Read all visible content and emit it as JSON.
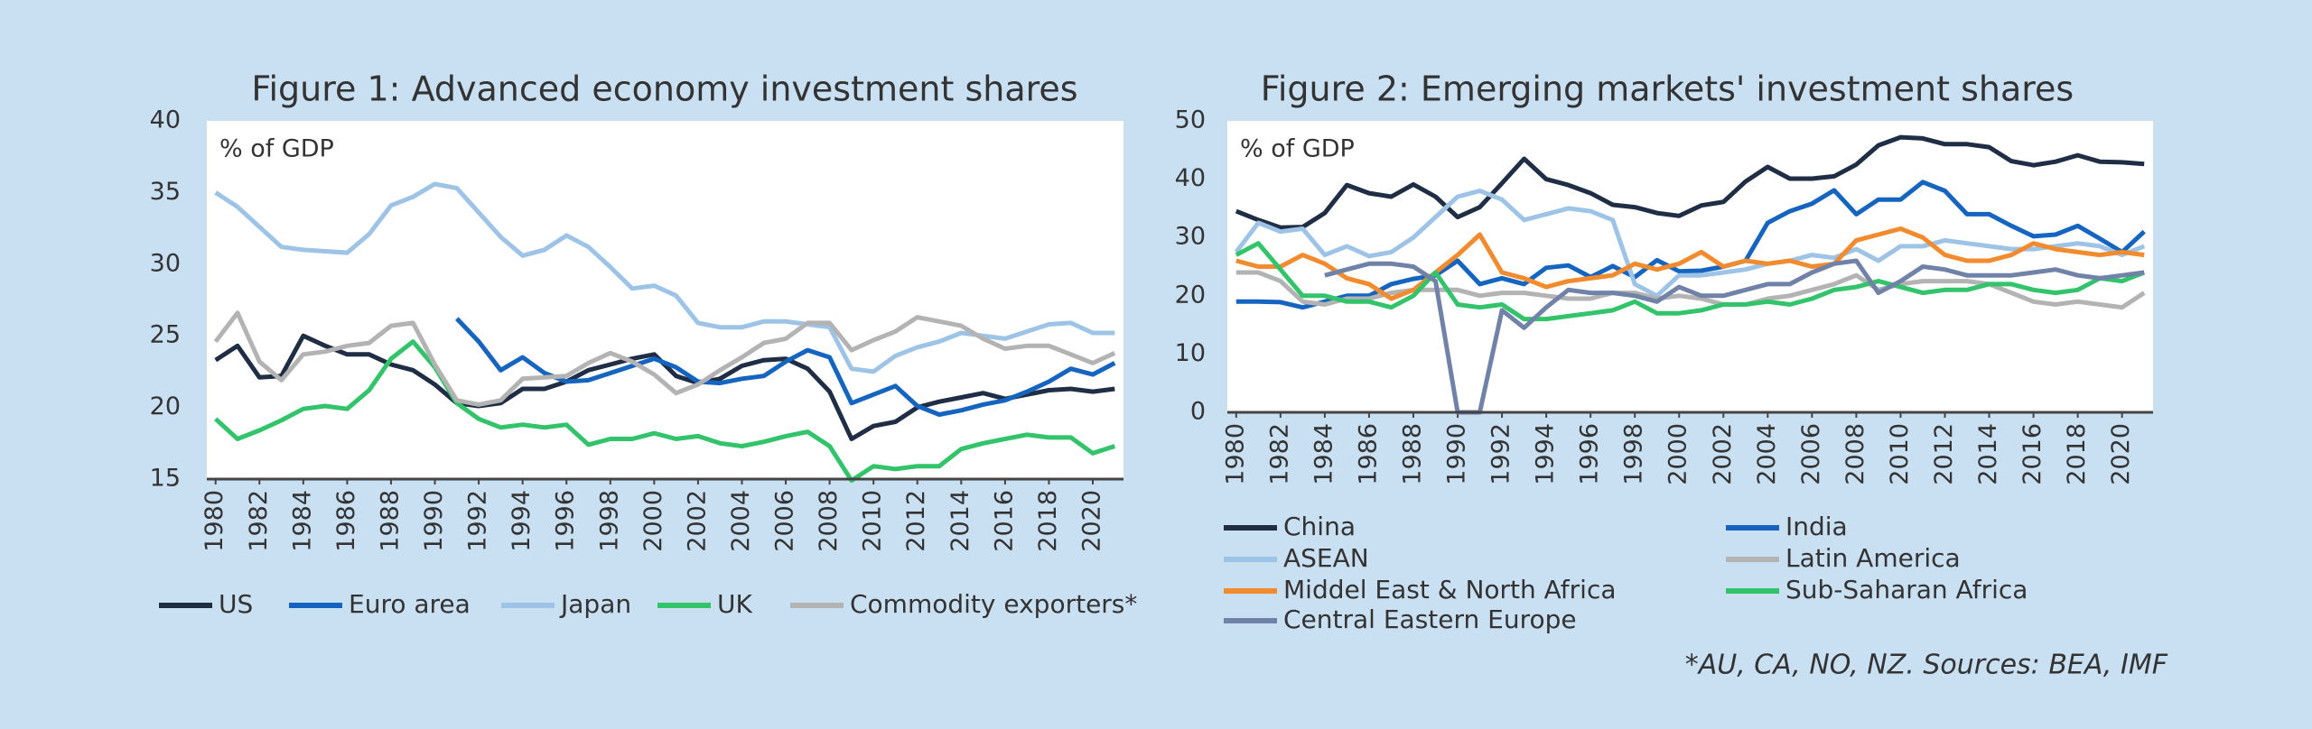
{
  "chart_data": [
    {
      "type": "line",
      "title": "Figure 1: Advanced economy investment shares",
      "annotation": "% of GDP",
      "x": [
        1980,
        1981,
        1982,
        1983,
        1984,
        1985,
        1986,
        1987,
        1988,
        1989,
        1990,
        1991,
        1992,
        1993,
        1994,
        1995,
        1996,
        1997,
        1998,
        1999,
        2000,
        2001,
        2002,
        2003,
        2004,
        2005,
        2006,
        2007,
        2008,
        2009,
        2010,
        2011,
        2012,
        2013,
        2014,
        2015,
        2016,
        2017,
        2018,
        2019,
        2020,
        2021
      ],
      "xlim": [
        1979.6,
        2021.4
      ],
      "xticks": [
        1980,
        1982,
        1984,
        1986,
        1988,
        1990,
        1992,
        1994,
        1996,
        1998,
        2000,
        2002,
        2004,
        2006,
        2008,
        2010,
        2012,
        2014,
        2016,
        2018,
        2020
      ],
      "ylim": [
        15,
        40
      ],
      "yticks": [
        15,
        20,
        25,
        30,
        35,
        40
      ],
      "grid": false,
      "legend": "bottom",
      "series": [
        {
          "name": "US",
          "color": "#1f2d45",
          "values": [
            23.3,
            24.3,
            22.1,
            22.2,
            25.0,
            24.3,
            23.7,
            23.7,
            23.0,
            22.6,
            21.6,
            20.3,
            20.1,
            20.3,
            21.3,
            21.3,
            21.8,
            22.6,
            23.0,
            23.4,
            23.7,
            22.2,
            21.7,
            22.0,
            22.9,
            23.3,
            23.4,
            22.7,
            21.1,
            17.8,
            18.7,
            19.0,
            20.0,
            20.4,
            20.7,
            21.0,
            20.6,
            20.9,
            21.2,
            21.3,
            21.1,
            21.3
          ]
        },
        {
          "name": "Euro area",
          "color": "#1565c0",
          "values": [
            null,
            null,
            null,
            null,
            null,
            null,
            null,
            null,
            null,
            null,
            null,
            26.2,
            24.6,
            22.6,
            23.5,
            22.4,
            21.8,
            21.9,
            22.4,
            22.9,
            23.4,
            22.8,
            21.8,
            21.7,
            22.0,
            22.2,
            23.2,
            24.0,
            23.5,
            20.3,
            20.9,
            21.5,
            20.1,
            19.5,
            19.8,
            20.2,
            20.5,
            21.1,
            21.8,
            22.7,
            22.3,
            23.1
          ]
        },
        {
          "name": "Japan",
          "color": "#9dc3e6",
          "values": [
            35.0,
            34.0,
            32.6,
            31.2,
            31.0,
            30.9,
            30.8,
            32.1,
            34.1,
            34.7,
            35.6,
            35.3,
            33.6,
            31.9,
            30.6,
            31.0,
            32.0,
            31.2,
            29.8,
            28.3,
            28.5,
            27.8,
            25.9,
            25.6,
            25.6,
            26.0,
            26.0,
            25.8,
            25.6,
            22.7,
            22.5,
            23.6,
            24.2,
            24.6,
            25.2,
            25.0,
            24.8,
            25.3,
            25.8,
            25.9,
            25.2,
            25.2
          ]
        },
        {
          "name": "UK",
          "color": "#33c36a",
          "values": [
            19.2,
            17.8,
            18.4,
            19.1,
            19.9,
            20.1,
            19.9,
            21.2,
            23.4,
            24.6,
            22.8,
            20.3,
            19.2,
            18.6,
            18.8,
            18.6,
            18.8,
            17.4,
            17.8,
            17.8,
            18.2,
            17.8,
            18.0,
            17.5,
            17.3,
            17.6,
            18.0,
            18.3,
            17.3,
            14.9,
            15.9,
            15.7,
            15.9,
            15.9,
            17.1,
            17.5,
            17.8,
            18.1,
            17.9,
            17.9,
            16.8,
            17.3
          ]
        },
        {
          "name": "Commodity exporters*",
          "color": "#b3b3b3",
          "values": [
            24.6,
            26.6,
            23.2,
            21.9,
            23.7,
            23.9,
            24.3,
            24.5,
            25.7,
            25.9,
            23.0,
            20.5,
            20.2,
            20.5,
            22.0,
            22.1,
            22.2,
            23.1,
            23.8,
            23.2,
            22.3,
            21.0,
            21.6,
            22.6,
            23.5,
            24.5,
            24.8,
            25.9,
            25.9,
            24.0,
            24.7,
            25.3,
            26.3,
            26.0,
            25.7,
            24.8,
            24.1,
            24.3,
            24.3,
            23.7,
            23.1,
            23.8
          ]
        }
      ]
    },
    {
      "type": "line",
      "title": "Figure 2: Emerging markets' investment shares",
      "annotation": "% of GDP",
      "x": [
        1980,
        1981,
        1982,
        1983,
        1984,
        1985,
        1986,
        1987,
        1988,
        1989,
        1990,
        1991,
        1992,
        1993,
        1994,
        1995,
        1996,
        1997,
        1998,
        1999,
        2000,
        2001,
        2002,
        2003,
        2004,
        2005,
        2006,
        2007,
        2008,
        2009,
        2010,
        2011,
        2012,
        2013,
        2014,
        2015,
        2016,
        2017,
        2018,
        2019,
        2020,
        2021
      ],
      "xlim": [
        1979.6,
        2021.4
      ],
      "xticks": [
        1980,
        1982,
        1984,
        1986,
        1988,
        1990,
        1992,
        1994,
        1996,
        1998,
        2000,
        2002,
        2004,
        2006,
        2008,
        2010,
        2012,
        2014,
        2016,
        2018,
        2020
      ],
      "ylim": [
        0,
        50
      ],
      "yticks": [
        0,
        10,
        20,
        30,
        40,
        50
      ],
      "grid": false,
      "legend": "bottom",
      "series": [
        {
          "name": "China",
          "color": "#1f2d45",
          "values": [
            34.5,
            33.0,
            31.7,
            31.8,
            34.2,
            39.0,
            37.6,
            37.0,
            39.1,
            37.0,
            33.5,
            35.2,
            39.3,
            43.5,
            40.0,
            39.0,
            37.6,
            35.6,
            35.2,
            34.2,
            33.7,
            35.5,
            36.1,
            39.6,
            42.1,
            40.1,
            40.1,
            40.5,
            42.5,
            45.8,
            47.2,
            47.0,
            46.0,
            46.0,
            45.5,
            43.1,
            42.4,
            43.0,
            44.1,
            43.0,
            42.9,
            42.6
          ]
        },
        {
          "name": "India",
          "color": "#1565c0",
          "values": [
            19,
            19,
            18.9,
            18,
            19,
            20,
            20,
            22,
            22.9,
            23.5,
            26,
            22,
            23,
            22,
            24.8,
            25.2,
            23.2,
            25.1,
            23.2,
            26.1,
            24.2,
            24.3,
            25,
            26,
            32.5,
            34.5,
            35.8,
            38.1,
            34,
            36.5,
            36.5,
            39.5,
            38,
            34,
            34,
            32,
            30.2,
            30.5,
            32,
            29.8,
            27.5,
            31
          ]
        },
        {
          "name": "ASEAN",
          "color": "#9dc3e6",
          "values": [
            27.5,
            32.5,
            31,
            31.5,
            27,
            28.5,
            26.8,
            27.5,
            30,
            33.5,
            37,
            38,
            36.5,
            33,
            34,
            35,
            34.5,
            33,
            22,
            20,
            23.5,
            23.5,
            24,
            24.5,
            25.5,
            26,
            27,
            26.5,
            28,
            26,
            28.5,
            28.5,
            29.5,
            29,
            28.5,
            28,
            28,
            28.5,
            29,
            28.5,
            27,
            28.5
          ]
        },
        {
          "name": "Latin America",
          "color": "#b3b3b3",
          "values": [
            24,
            24,
            22.5,
            19,
            18.5,
            19.5,
            19.5,
            20.5,
            21,
            21,
            21,
            20,
            20.5,
            20.5,
            20,
            19.5,
            19.5,
            20.5,
            20.5,
            19.5,
            20,
            19.5,
            18.5,
            18.5,
            19.5,
            20,
            21,
            22,
            23.5,
            21,
            22,
            22.5,
            22.5,
            22.5,
            22,
            20.5,
            19,
            18.5,
            19,
            18.5,
            18,
            20.5
          ]
        },
        {
          "name": "Middel East & North Africa",
          "color": "#f28a2e",
          "values": [
            26,
            25,
            25,
            27,
            25.5,
            23,
            22,
            19.5,
            21,
            24,
            27,
            30.5,
            24,
            23,
            21.5,
            22.5,
            23,
            23.5,
            25.5,
            24.5,
            25.5,
            27.5,
            25,
            26,
            25.5,
            26,
            25,
            25.5,
            29.5,
            30.5,
            31.5,
            30,
            27,
            26,
            26,
            27,
            29,
            28,
            27.5,
            27,
            27.5,
            27
          ]
        },
        {
          "name": "Sub-Saharan Africa",
          "color": "#33c36a",
          "values": [
            27,
            29,
            24.5,
            20,
            20,
            19,
            19,
            18,
            20,
            24,
            18.5,
            18,
            18.5,
            16,
            16,
            16.5,
            17,
            17.5,
            19,
            17,
            17,
            17.5,
            18.5,
            18.5,
            19,
            18.5,
            19.5,
            21,
            21.5,
            22.5,
            21.5,
            20.5,
            21,
            21,
            22,
            22,
            21,
            20.5,
            21,
            23,
            22.5,
            24
          ]
        },
        {
          "name": "Central Eastern Europe",
          "color": "#7082a8",
          "values": [
            null,
            null,
            null,
            null,
            23.5,
            24.5,
            25.5,
            25.5,
            25,
            22.5,
            0,
            0,
            17.5,
            14.5,
            18,
            21,
            20.5,
            20.5,
            20,
            19,
            21.5,
            20,
            20,
            21,
            22,
            22,
            24,
            25.5,
            26,
            20.5,
            22.5,
            25,
            24.5,
            23.5,
            23.5,
            23.5,
            24,
            24.5,
            23.5,
            23,
            23.5,
            24
          ]
        }
      ]
    }
  ],
  "footnote": "*AU, CA, NO, NZ.  Sources: BEA, IMF"
}
